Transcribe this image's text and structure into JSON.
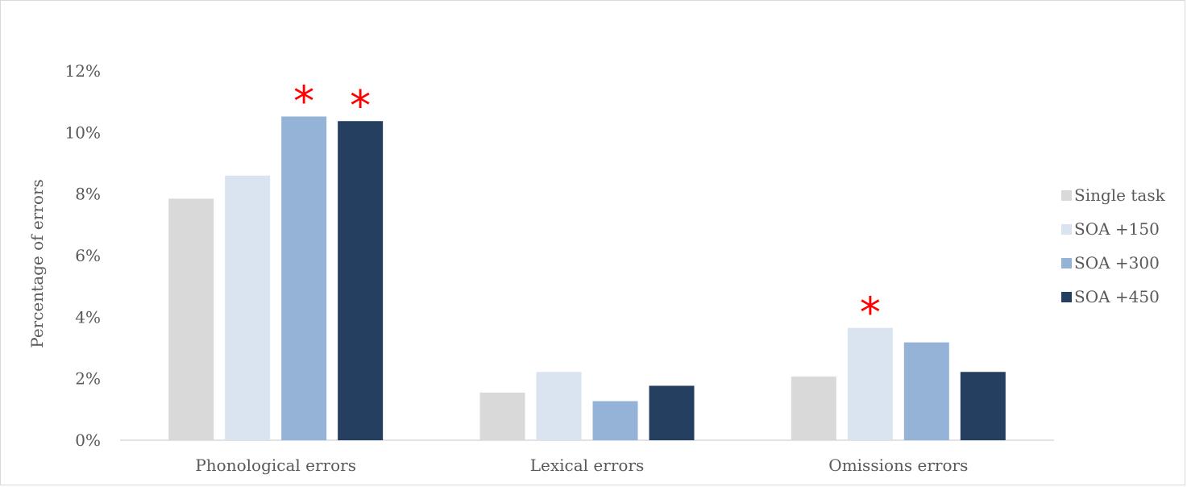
{
  "chart_data": {
    "type": "bar",
    "categories": [
      "Phonological errors",
      "Lexical errors",
      "Omissions errors"
    ],
    "series": [
      {
        "name": "Single task",
        "values": [
          7.85,
          1.55,
          2.07
        ],
        "color": "#d9d9d9"
      },
      {
        "name": "SOA +150",
        "values": [
          8.6,
          2.22,
          3.65
        ],
        "color": "#dae3f0"
      },
      {
        "name": "SOA +300",
        "values": [
          10.52,
          1.27,
          3.18
        ],
        "color": "#95b3d7"
      },
      {
        "name": "SOA +450",
        "values": [
          10.37,
          1.77,
          2.22
        ],
        "color": "#243f60"
      }
    ],
    "ylabel": "Percentage of errors",
    "ylim": [
      0,
      12
    ],
    "ytick_labels": [
      "0%",
      "2%",
      "4%",
      "6%",
      "8%",
      "10%",
      "12%"
    ],
    "grid": false,
    "legend_position": "right",
    "annotations": [
      {
        "text": "*",
        "category": "Phonological errors",
        "series": "SOA +300",
        "color": "#ff0000"
      },
      {
        "text": "*",
        "category": "Phonological errors",
        "series": "SOA +450",
        "color": "#ff0000"
      },
      {
        "text": "*",
        "category": "Omissions errors",
        "series": "SOA +150",
        "color": "#ff0000"
      }
    ]
  }
}
